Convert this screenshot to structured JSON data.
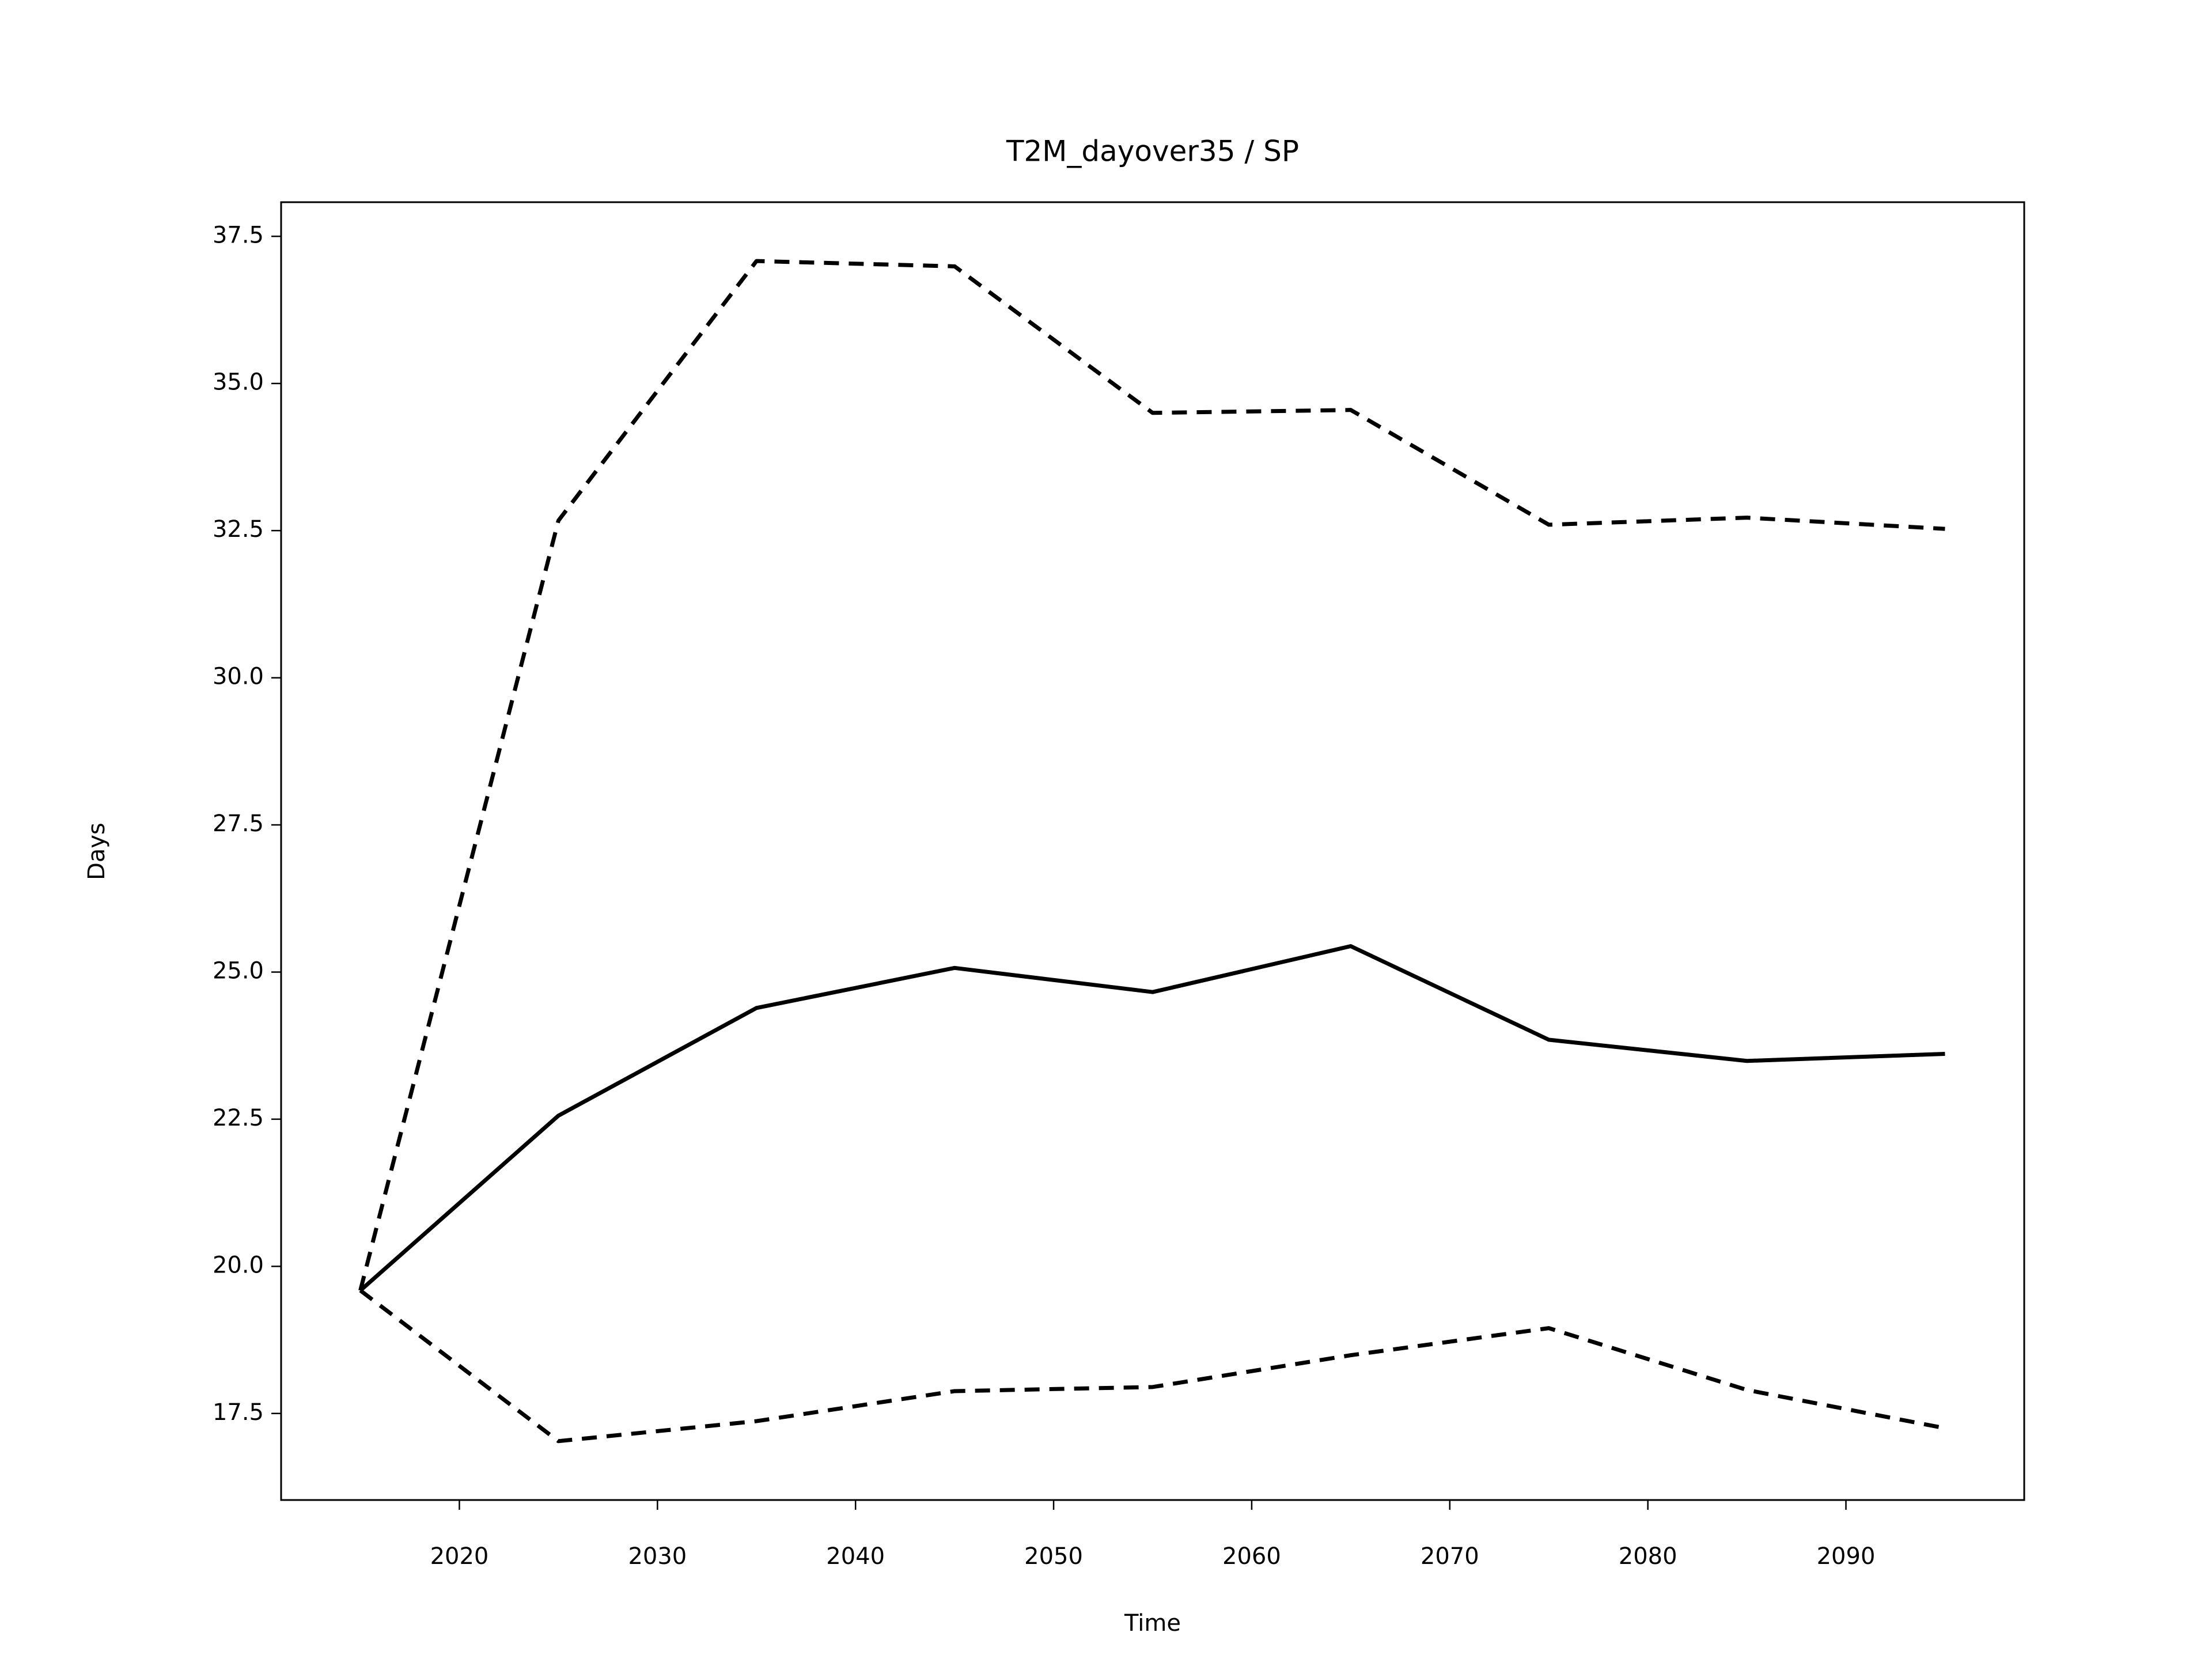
{
  "chart_data": {
    "type": "line",
    "title": "T2M_dayover35 / SP",
    "x_label": "Time",
    "y_label": "Days",
    "x": [
      2015,
      2025,
      2035,
      2045,
      2055,
      2065,
      2075,
      2085,
      2095
    ],
    "series": [
      {
        "color": "#000000",
        "linestyle": "solid",
        "values": [
          19.59,
          22.56,
          24.39,
          25.07,
          24.66,
          25.44,
          23.85,
          23.49,
          23.61
        ]
      },
      {
        "color": "#000000",
        "linestyle": "dashed",
        "values": [
          19.59,
          32.67,
          37.08,
          36.99,
          34.5,
          34.55,
          32.6,
          32.72,
          32.53
        ]
      },
      {
        "color": "#000000",
        "linestyle": "dashed",
        "values": [
          19.59,
          17.03,
          17.37,
          17.88,
          17.95,
          18.49,
          18.95,
          17.9,
          17.25
        ]
      }
    ],
    "xlim": [
      2011,
      2099
    ],
    "ylim": [
      16.03,
      38.08
    ],
    "xticks": [
      2020,
      2030,
      2040,
      2050,
      2060,
      2070,
      2080,
      2090
    ],
    "yticks": [
      17.5,
      {
        "value": 20,
        "label": "20.0"
      },
      22.5,
      {
        "value": 25,
        "label": "25.0"
      },
      27.5,
      {
        "value": 30,
        "label": "30.0"
      },
      32.5,
      {
        "value": 35,
        "label": "35.0"
      },
      37.5
    ],
    "grid": false
  }
}
